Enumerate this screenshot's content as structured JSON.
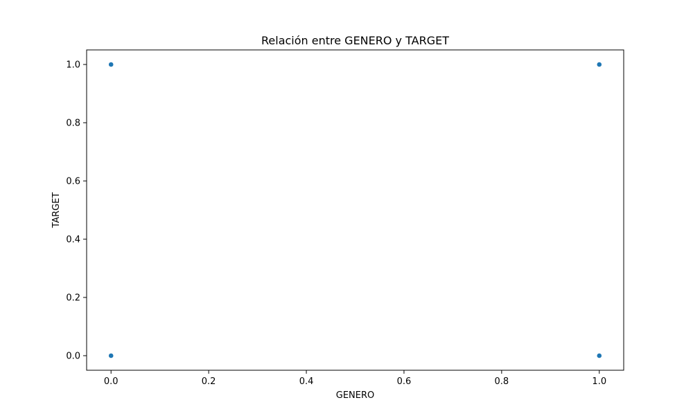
{
  "chart_data": {
    "type": "scatter",
    "title": "Relación entre GENERO y TARGET",
    "xlabel": "GENERO",
    "ylabel": "TARGET",
    "xlim": [
      -0.05,
      1.05
    ],
    "ylim": [
      -0.05,
      1.05
    ],
    "xticks": [
      "0.0",
      "0.2",
      "0.4",
      "0.6",
      "0.8",
      "1.0"
    ],
    "yticks": [
      "0.0",
      "0.2",
      "0.4",
      "0.6",
      "0.8",
      "1.0"
    ],
    "grid": false,
    "series": [
      {
        "color": "#1f77b4",
        "points": [
          {
            "x": 0.0,
            "y": 1.0
          },
          {
            "x": 1.0,
            "y": 1.0
          },
          {
            "x": 0.0,
            "y": 0.0
          },
          {
            "x": 1.0,
            "y": 0.0
          }
        ]
      }
    ]
  }
}
